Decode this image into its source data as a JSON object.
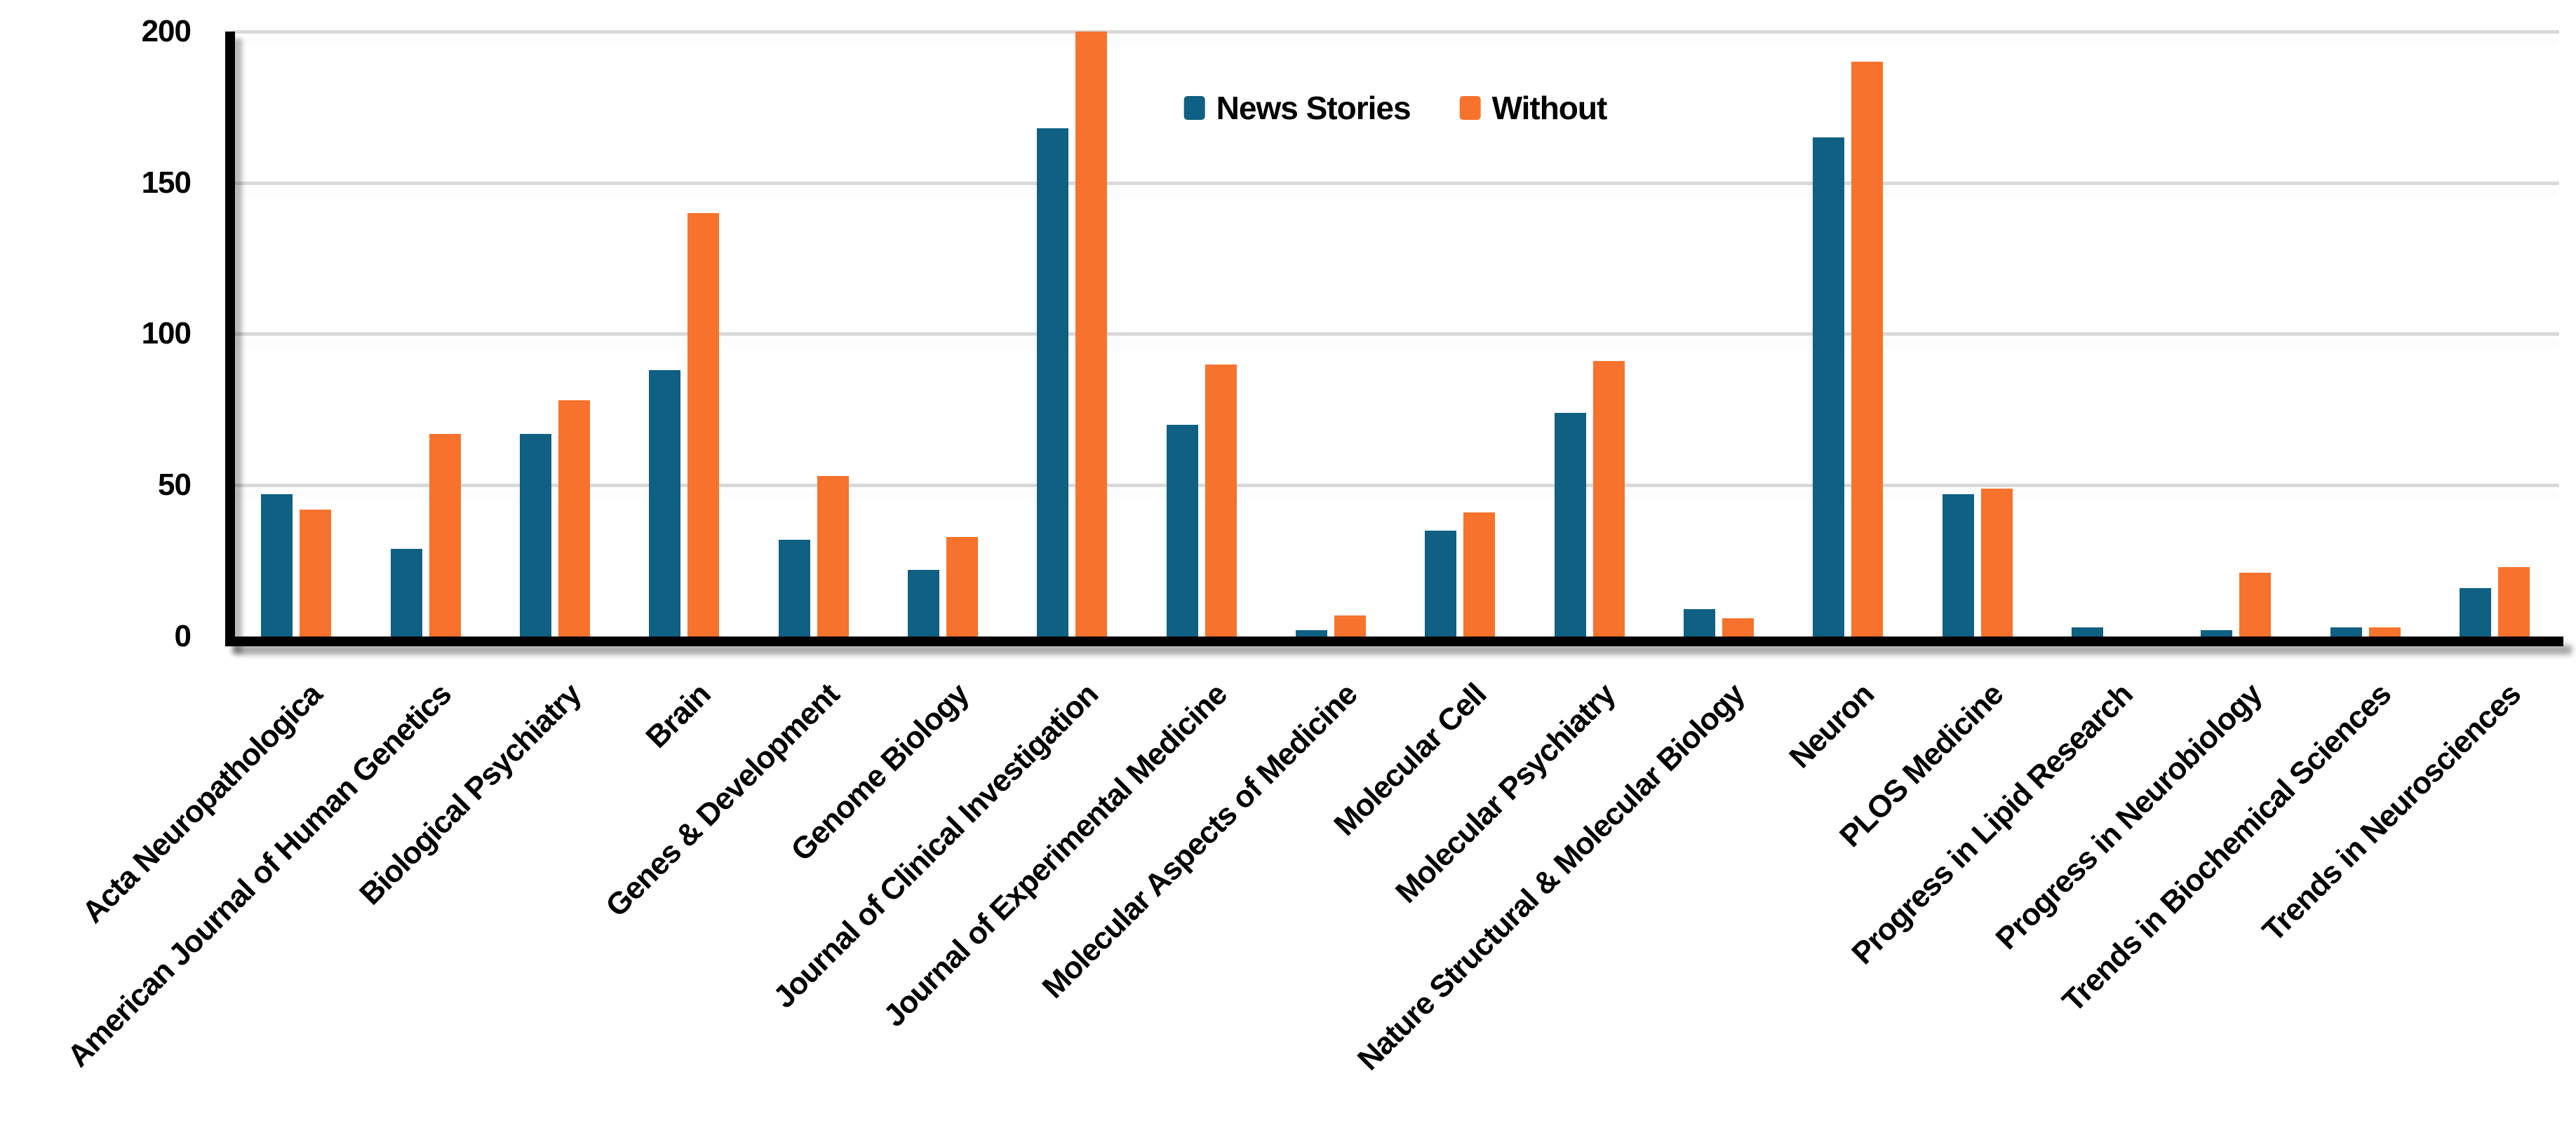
{
  "chart_data": {
    "type": "bar",
    "title": "",
    "xlabel": "",
    "ylabel": "",
    "categories": [
      "Acta Neuropathologica",
      "American Journal of Human Genetics",
      "Biological Psychiatry",
      "Brain",
      "Genes & Development",
      "Genome Biology",
      "Journal of Clinical Investigation",
      "Journal of Experimental Medicine",
      "Molecular Aspects of Medicine",
      "Molecular Cell",
      "Molecular Psychiatry",
      "Nature Structural & Molecular Biology",
      "Neuron",
      "PLOS Medicine",
      "Progress in Lipid Research",
      "Progress in Neurobiology",
      "Trends in Biochemical Sciences",
      "Trends in Neurosciences"
    ],
    "series": [
      {
        "name": "News Stories",
        "color": "#0F6083",
        "values": [
          47,
          29,
          67,
          88,
          32,
          22,
          168,
          70,
          2,
          35,
          74,
          9,
          165,
          47,
          3,
          2,
          3,
          16
        ]
      },
      {
        "name": "Without",
        "color": "#F7722C",
        "values": [
          42,
          67,
          78,
          140,
          53,
          33,
          200,
          90,
          7,
          41,
          91,
          6,
          190,
          49,
          0,
          21,
          3,
          23
        ]
      }
    ],
    "ylim": [
      0,
      200
    ],
    "yticks": [
      0,
      50,
      100,
      150,
      200
    ],
    "grid": "horizontal",
    "legend_position": "top-center",
    "gridline_color": "#d9d9d9",
    "axis_color": "#000000",
    "label_color": "#000000"
  }
}
